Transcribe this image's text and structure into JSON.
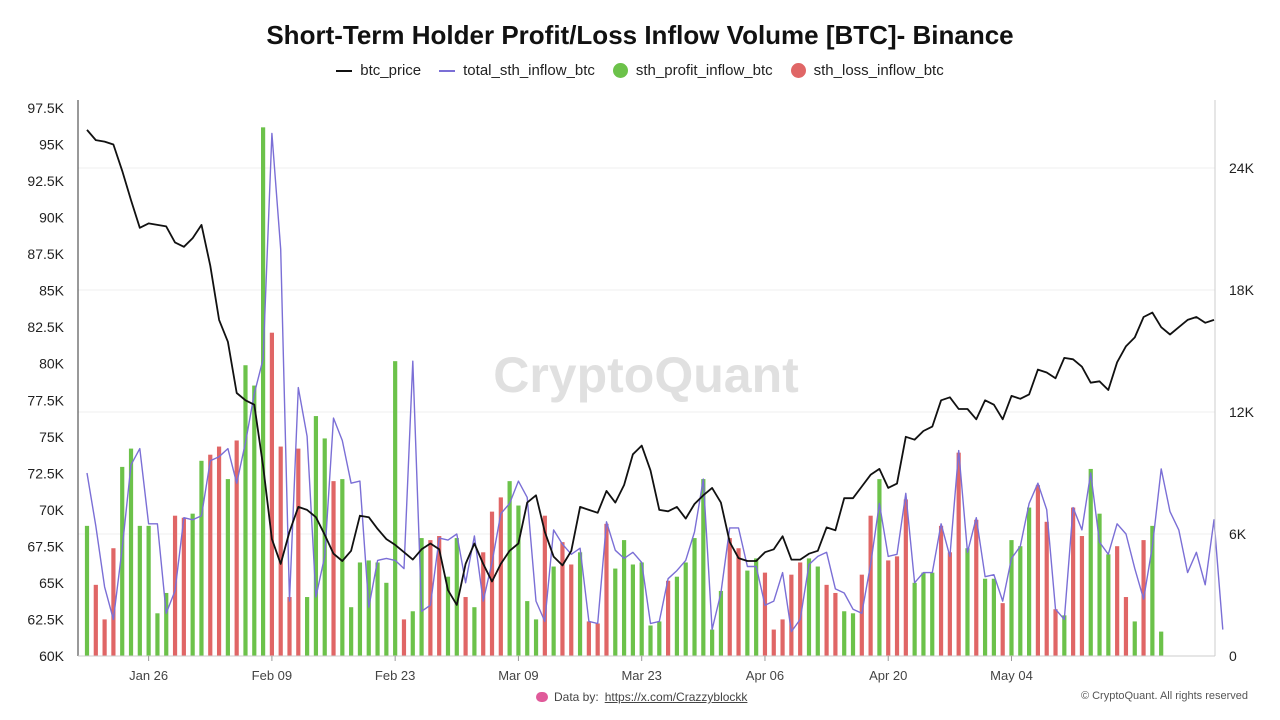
{
  "title": "Short-Term Holder Profit/Loss Inflow Volume [BTC]- Binance",
  "legend": [
    {
      "name": "btc_price",
      "kind": "line",
      "color": "#111111"
    },
    {
      "name": "total_sth_inflow_btc",
      "kind": "line",
      "color": "#7b6fd6"
    },
    {
      "name": "sth_profit_inflow_btc",
      "kind": "dot",
      "color": "#6cc24a"
    },
    {
      "name": "sth_loss_inflow_btc",
      "kind": "dot",
      "color": "#e06666"
    }
  ],
  "watermark": "CryptoQuant",
  "footer": {
    "data_by_label": "Data by:",
    "data_by_link": "https://x.com/Crazzyblockk",
    "copyright": "© CryptoQuant. All rights reserved"
  },
  "chart_data": {
    "type": "bar",
    "x_ticks": [
      {
        "label": "Jan 26",
        "index": 7
      },
      {
        "label": "Feb 09",
        "index": 21
      },
      {
        "label": "Feb 23",
        "index": 35
      },
      {
        "label": "Mar 09",
        "index": 49
      },
      {
        "label": "Mar 23",
        "index": 63
      },
      {
        "label": "Apr 06",
        "index": 77
      },
      {
        "label": "Apr 20",
        "index": 91
      },
      {
        "label": "May 04",
        "index": 105
      }
    ],
    "y_left": {
      "ticks": [
        "60K",
        "62.5K",
        "65K",
        "67.5K",
        "70K",
        "72.5K",
        "75K",
        "77.5K",
        "80K",
        "82.5K",
        "85K",
        "87.5K",
        "90K",
        "92.5K",
        "95K",
        "97.5K"
      ],
      "min": 60000,
      "max": 97500
    },
    "y_right": {
      "ticks": [
        "0",
        "6K",
        "12K",
        "18K",
        "24K"
      ],
      "min": 0,
      "max": 24000
    },
    "btc_price": [
      96000,
      95300,
      95200,
      95000,
      93200,
      91200,
      89300,
      89600,
      89500,
      89400,
      88300,
      88000,
      88600,
      89500,
      86700,
      83000,
      81500,
      78000,
      77500,
      77200,
      73000,
      68000,
      66300,
      68500,
      70200,
      70000,
      69500,
      68300,
      67000,
      66500,
      67200,
      69600,
      69500,
      68700,
      68000,
      67600,
      67100,
      66600,
      67300,
      67700,
      67300,
      64500,
      63500,
      66300,
      67700,
      66300,
      65100,
      66300,
      67200,
      67700,
      70500,
      71000,
      68500,
      66800,
      66200,
      67200,
      70200,
      70000,
      69800,
      71300,
      70500,
      71700,
      73800,
      74400,
      72700,
      70000,
      69900,
      70200,
      69400,
      70400,
      71000,
      71500,
      70500,
      67800,
      66700,
      66500,
      66500,
      67100,
      67300,
      68200,
      66600,
      66600,
      67000,
      67200,
      68800,
      68600,
      70800,
      70800,
      71600,
      72400,
      72800,
      71500,
      71800,
      75000,
      74800,
      75400,
      75700,
      77500,
      77700,
      76900,
      76900,
      76200,
      77500,
      77200,
      76200,
      77800,
      77600,
      77900,
      79600,
      79400,
      79000,
      80400,
      80300,
      79800,
      78700,
      78800,
      78200,
      80100,
      81200,
      81800,
      83200,
      83500,
      82500,
      82000,
      82500,
      83000,
      83200,
      82800,
      83000
    ],
    "total_sth_inflow_btc": [
      9000,
      6400,
      3400,
      1800,
      5300,
      9400,
      10200,
      6500,
      6500,
      2100,
      3200,
      6800,
      6700,
      6900,
      9600,
      9800,
      10200,
      8500,
      10500,
      12900,
      14600,
      25700,
      20000,
      2700,
      13200,
      10800,
      2900,
      4900,
      11700,
      10600,
      8500,
      8600,
      2400,
      4700,
      4800,
      4700,
      4300,
      14500,
      2200,
      2500,
      5800,
      5700,
      6000,
      3600,
      5900,
      2700,
      4600,
      7000,
      7500,
      8600,
      7800,
      2700,
      1700,
      6200,
      5500,
      5000,
      5300,
      1700,
      1600,
      6600,
      5200,
      4800,
      5100,
      4600,
      1600,
      1700,
      3800,
      4200,
      4700,
      6100,
      8700,
      1300,
      3100,
      6300,
      6300,
      4400,
      4400,
      2500,
      2700,
      4100,
      1200,
      1800,
      4500,
      4900,
      5100,
      3300,
      3100,
      2300,
      2100,
      4500,
      7500,
      4900,
      5000,
      8000,
      3600,
      4100,
      4100,
      6500,
      4900,
      10100,
      5100,
      6800,
      3900,
      4000,
      2700,
      4800,
      5400,
      7500,
      8500,
      7200,
      2300,
      1800,
      7300,
      6200,
      9000,
      5600,
      5000,
      6500,
      6000,
      4300,
      2800,
      5400,
      9200,
      7100,
      6200,
      4100,
      5100,
      3500,
      6700,
      1300
    ],
    "bars": [
      {
        "t": "p",
        "v": 6400
      },
      {
        "t": "l",
        "v": 3500
      },
      {
        "t": "l",
        "v": 1800
      },
      {
        "t": "l",
        "v": 5300
      },
      {
        "t": "p",
        "v": 9300
      },
      {
        "t": "p",
        "v": 10200
      },
      {
        "t": "p",
        "v": 6400
      },
      {
        "t": "p",
        "v": 6400
      },
      {
        "t": "p",
        "v": 2100
      },
      {
        "t": "p",
        "v": 3100
      },
      {
        "t": "l",
        "v": 6900
      },
      {
        "t": "l",
        "v": 6800
      },
      {
        "t": "p",
        "v": 7000
      },
      {
        "t": "p",
        "v": 9600
      },
      {
        "t": "l",
        "v": 9900
      },
      {
        "t": "l",
        "v": 10300
      },
      {
        "t": "p",
        "v": 8700
      },
      {
        "t": "l",
        "v": 10600
      },
      {
        "t": "p",
        "v": 14300
      },
      {
        "t": "p",
        "v": 13300
      },
      {
        "t": "p",
        "v": 26000
      },
      {
        "t": "l",
        "v": 15900
      },
      {
        "t": "l",
        "v": 10300
      },
      {
        "t": "l",
        "v": 2900
      },
      {
        "t": "l",
        "v": 10200
      },
      {
        "t": "p",
        "v": 2900
      },
      {
        "t": "p",
        "v": 11800
      },
      {
        "t": "p",
        "v": 10700
      },
      {
        "t": "l",
        "v": 8600
      },
      {
        "t": "p",
        "v": 8700
      },
      {
        "t": "p",
        "v": 2400
      },
      {
        "t": "p",
        "v": 4600
      },
      {
        "t": "p",
        "v": 4700
      },
      {
        "t": "p",
        "v": 4600
      },
      {
        "t": "p",
        "v": 3600
      },
      {
        "t": "p",
        "v": 14500
      },
      {
        "t": "l",
        "v": 1800
      },
      {
        "t": "p",
        "v": 2200
      },
      {
        "t": "p",
        "v": 5800
      },
      {
        "t": "l",
        "v": 5700
      },
      {
        "t": "l",
        "v": 5900
      },
      {
        "t": "p",
        "v": 3900
      },
      {
        "t": "p",
        "v": 5800
      },
      {
        "t": "l",
        "v": 2900
      },
      {
        "t": "p",
        "v": 2400
      },
      {
        "t": "l",
        "v": 5100
      },
      {
        "t": "l",
        "v": 7100
      },
      {
        "t": "l",
        "v": 7800
      },
      {
        "t": "p",
        "v": 8600
      },
      {
        "t": "p",
        "v": 7400
      },
      {
        "t": "p",
        "v": 2700
      },
      {
        "t": "p",
        "v": 1800
      },
      {
        "t": "l",
        "v": 6900
      },
      {
        "t": "p",
        "v": 4400
      },
      {
        "t": "l",
        "v": 5600
      },
      {
        "t": "l",
        "v": 4500
      },
      {
        "t": "p",
        "v": 5100
      },
      {
        "t": "l",
        "v": 1700
      },
      {
        "t": "l",
        "v": 1600
      },
      {
        "t": "l",
        "v": 6500
      },
      {
        "t": "p",
        "v": 4300
      },
      {
        "t": "p",
        "v": 5700
      },
      {
        "t": "p",
        "v": 4500
      },
      {
        "t": "p",
        "v": 4600
      },
      {
        "t": "p",
        "v": 1500
      },
      {
        "t": "p",
        "v": 1700
      },
      {
        "t": "l",
        "v": 3700
      },
      {
        "t": "p",
        "v": 3900
      },
      {
        "t": "p",
        "v": 4600
      },
      {
        "t": "p",
        "v": 5800
      },
      {
        "t": "p",
        "v": 8700
      },
      {
        "t": "p",
        "v": 1300
      },
      {
        "t": "p",
        "v": 3200
      },
      {
        "t": "l",
        "v": 5800
      },
      {
        "t": "l",
        "v": 5300
      },
      {
        "t": "p",
        "v": 4200
      },
      {
        "t": "p",
        "v": 4800
      },
      {
        "t": "l",
        "v": 4100
      },
      {
        "t": "l",
        "v": 1300
      },
      {
        "t": "l",
        "v": 1800
      },
      {
        "t": "l",
        "v": 4000
      },
      {
        "t": "l",
        "v": 4600
      },
      {
        "t": "p",
        "v": 4800
      },
      {
        "t": "p",
        "v": 4400
      },
      {
        "t": "l",
        "v": 3500
      },
      {
        "t": "l",
        "v": 3100
      },
      {
        "t": "p",
        "v": 2200
      },
      {
        "t": "p",
        "v": 2100
      },
      {
        "t": "l",
        "v": 4000
      },
      {
        "t": "l",
        "v": 6900
      },
      {
        "t": "p",
        "v": 8700
      },
      {
        "t": "l",
        "v": 4700
      },
      {
        "t": "l",
        "v": 4900
      },
      {
        "t": "l",
        "v": 7700
      },
      {
        "t": "p",
        "v": 3600
      },
      {
        "t": "p",
        "v": 4100
      },
      {
        "t": "p",
        "v": 4100
      },
      {
        "t": "l",
        "v": 6400
      },
      {
        "t": "l",
        "v": 5100
      },
      {
        "t": "l",
        "v": 10000
      },
      {
        "t": "p",
        "v": 5300
      },
      {
        "t": "l",
        "v": 6700
      },
      {
        "t": "p",
        "v": 3800
      },
      {
        "t": "p",
        "v": 3800
      },
      {
        "t": "l",
        "v": 2600
      },
      {
        "t": "p",
        "v": 5700
      },
      {
        "t": "p",
        "v": 5400
      },
      {
        "t": "p",
        "v": 7300
      },
      {
        "t": "l",
        "v": 8400
      },
      {
        "t": "l",
        "v": 6600
      },
      {
        "t": "l",
        "v": 2300
      },
      {
        "t": "p",
        "v": 2000
      },
      {
        "t": "l",
        "v": 7300
      },
      {
        "t": "l",
        "v": 5900
      },
      {
        "t": "p",
        "v": 9200
      },
      {
        "t": "p",
        "v": 7000
      },
      {
        "t": "p",
        "v": 5000
      },
      {
        "t": "l",
        "v": 5400
      },
      {
        "t": "l",
        "v": 2900
      },
      {
        "t": "p",
        "v": 1700
      },
      {
        "t": "l",
        "v": 5700
      },
      {
        "t": "p",
        "v": 6400
      },
      {
        "t": "p",
        "v": 1200
      }
    ]
  }
}
